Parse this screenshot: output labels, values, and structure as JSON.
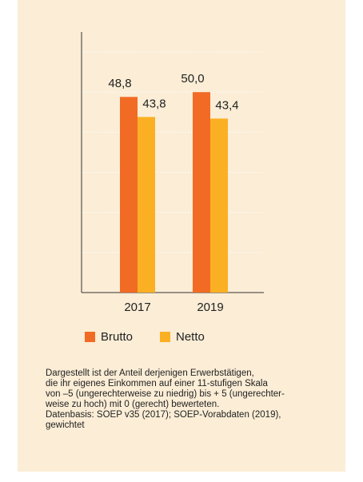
{
  "chart_data": {
    "type": "bar",
    "categories": [
      "2017",
      "2019"
    ],
    "series": [
      {
        "name": "Brutto",
        "color": "#f26b24",
        "values": [
          48.8,
          50.0
        ],
        "value_labels": [
          "48,8",
          "50,0"
        ]
      },
      {
        "name": "Netto",
        "color": "#fbb023",
        "values": [
          43.8,
          43.4
        ],
        "value_labels": [
          "43,8",
          "43,4"
        ]
      }
    ],
    "ylim": [
      0,
      65
    ],
    "yticks": [
      0,
      10,
      20,
      30,
      40,
      50,
      60
    ],
    "grid": true,
    "legend": "bottom",
    "note": [
      "Dargestellt ist der Anteil derjenigen Erwerbstätigen,",
      "die ihr eigenes Einkommen auf einer 11-stufigen Skala",
      "von –5 (ungerechterweise zu niedrig) bis + 5 (ungerechter-",
      "weise zu hoch) mit 0 (gerecht) bewerteten.",
      "Datenbasis: SOEP v35 (2017); SOEP-Vorabdaten (2019),",
      "gewichtet"
    ]
  }
}
